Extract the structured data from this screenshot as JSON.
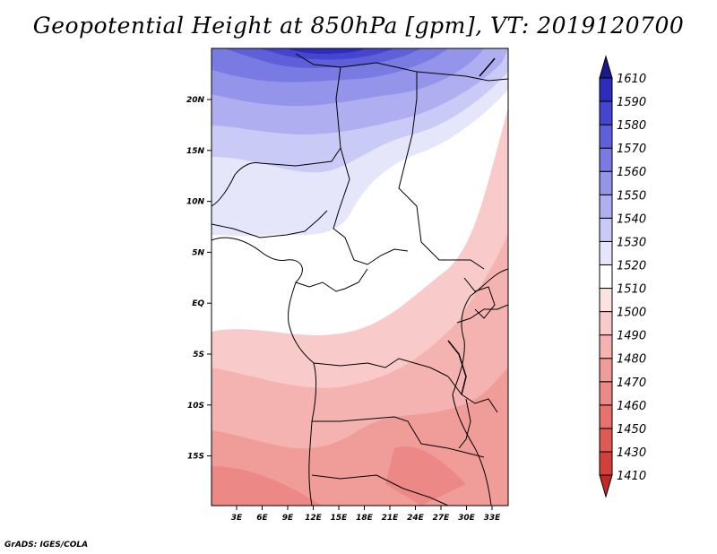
{
  "title": "Geopotential Height at 850hPa [gpm], VT: 2019120700",
  "credit": "GrADS: IGES/COLA",
  "map": {
    "lon_labels": [
      "3E",
      "6E",
      "9E",
      "12E",
      "15E",
      "18E",
      "21E",
      "24E",
      "27E",
      "30E",
      "33E"
    ],
    "lat_labels": [
      "20N",
      "15N",
      "10N",
      "5N",
      "EQ",
      "5S",
      "10S",
      "15S"
    ]
  },
  "colorbar": {
    "levels": [
      "1410",
      "1430",
      "1450",
      "1460",
      "1470",
      "1480",
      "1490",
      "1500",
      "1510",
      "1520",
      "1530",
      "1540",
      "1550",
      "1560",
      "1570",
      "1580",
      "1590",
      "1610"
    ],
    "colors": [
      "#c12a24",
      "#d33f3a",
      "#de5a55",
      "#e6716d",
      "#ec8885",
      "#f09d9a",
      "#f4b3b1",
      "#f8cbca",
      "#fce3e2",
      "#ffffff",
      "#e6e6fb",
      "#cacaf6",
      "#aeaef1",
      "#9494ea",
      "#7a7ae3",
      "#5f5fd9",
      "#4545cf",
      "#2d2dbd",
      "#1a1a8a"
    ]
  }
}
